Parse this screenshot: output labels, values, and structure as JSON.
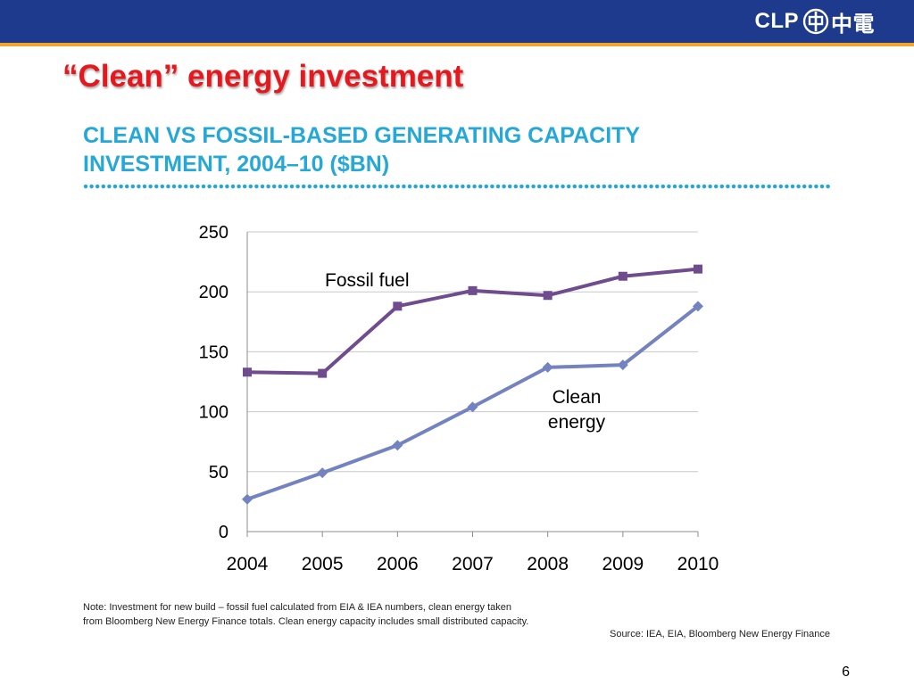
{
  "header": {
    "logo_text": "CLP",
    "logo_cjk": "中電"
  },
  "slide": {
    "title": "“Clean” energy investment",
    "chart_heading_line1": "CLEAN VS FOSSIL-BASED GENERATING CAPACITY",
    "chart_heading_line2": "INVESTMENT, 2004–10 ($BN)",
    "note": "Note: Investment for new build – fossil fuel calculated from EIA & IEA numbers, clean energy taken from Bloomberg New Energy Finance totals. Clean energy capacity includes small distributed capacity.",
    "source": "Source: IEA, EIA, Bloomberg New Energy Finance",
    "page_number": "6"
  },
  "colors": {
    "header_bar": "#1d3a8c",
    "header_stripe": "#f2a52a",
    "title": "#e5191d",
    "heading": "#25a8d6",
    "fossil_series": "#6f4c8e",
    "clean_series": "#7383c0"
  },
  "chart_data": {
    "type": "line",
    "title": "CLEAN VS FOSSIL-BASED GENERATING CAPACITY INVESTMENT, 2004–10 ($BN)",
    "categories": [
      "2004",
      "2005",
      "2006",
      "2007",
      "2008",
      "2009",
      "2010"
    ],
    "y_ticks": [
      "0",
      "50",
      "100",
      "150",
      "200",
      "250"
    ],
    "ylim": [
      0,
      250
    ],
    "grid": true,
    "legend": "inline labels",
    "series": [
      {
        "name": "Fossil fuel",
        "label_lines": [
          "Fossil fuel"
        ],
        "marker": "square",
        "color": "#6f4c8e",
        "values": [
          133,
          132,
          188,
          201,
          197,
          213,
          219
        ]
      },
      {
        "name": "Clean energy",
        "label_lines": [
          "Clean",
          "energy"
        ],
        "marker": "diamond",
        "color": "#7383c0",
        "values": [
          27,
          49,
          72,
          104,
          137,
          139,
          188
        ]
      }
    ]
  }
}
